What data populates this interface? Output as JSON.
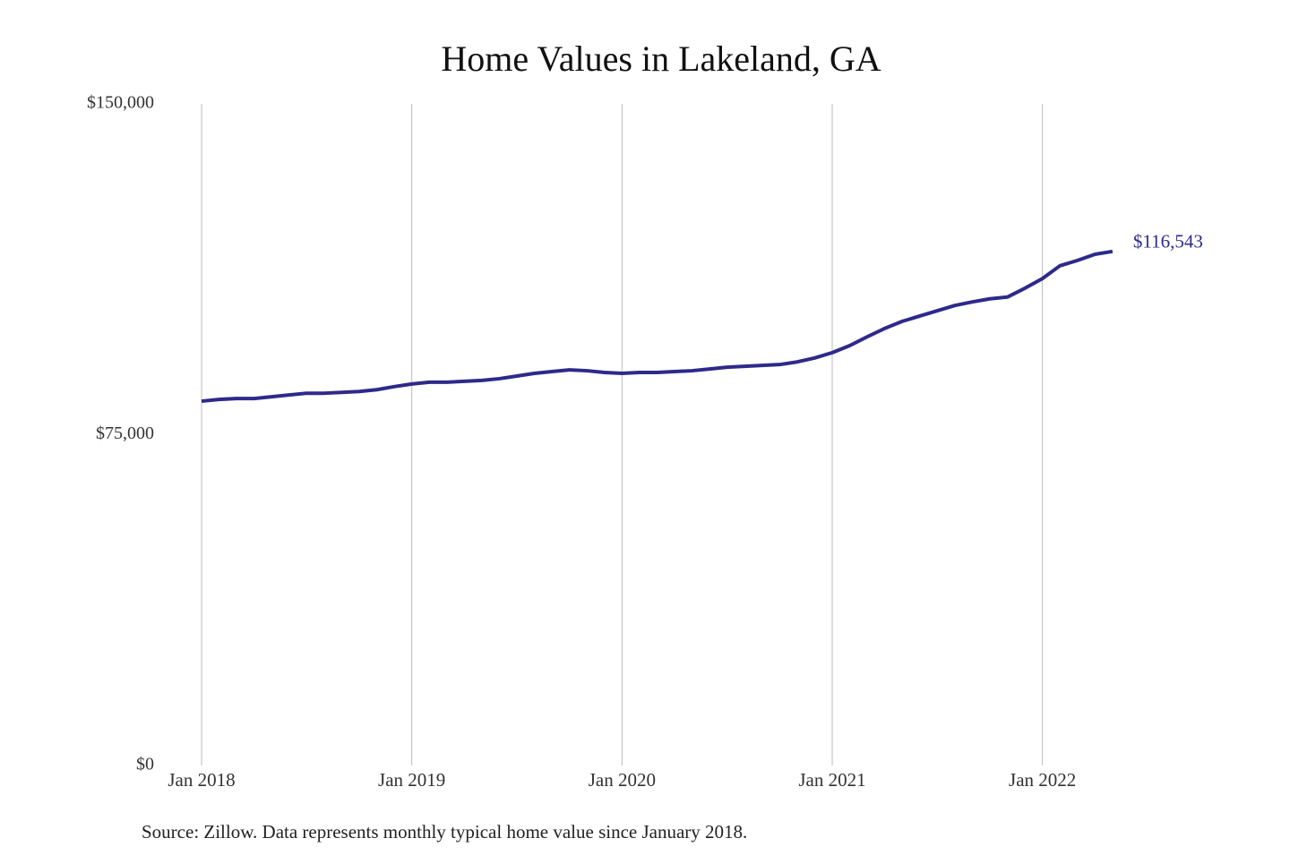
{
  "chart_data": {
    "type": "line",
    "title": "Home Values in Lakeland, GA",
    "source": "Source: Zillow. Data represents monthly typical home value since January 2018.",
    "x": [
      "2018-01",
      "2018-02",
      "2018-03",
      "2018-04",
      "2018-05",
      "2018-06",
      "2018-07",
      "2018-08",
      "2018-09",
      "2018-10",
      "2018-11",
      "2018-12",
      "2019-01",
      "2019-02",
      "2019-03",
      "2019-04",
      "2019-05",
      "2019-06",
      "2019-07",
      "2019-08",
      "2019-09",
      "2019-10",
      "2019-11",
      "2019-12",
      "2020-01",
      "2020-02",
      "2020-03",
      "2020-04",
      "2020-05",
      "2020-06",
      "2020-07",
      "2020-08",
      "2020-09",
      "2020-10",
      "2020-11",
      "2020-12",
      "2021-01",
      "2021-02",
      "2021-03",
      "2021-04",
      "2021-05",
      "2021-06",
      "2021-07",
      "2021-08",
      "2021-09",
      "2021-10",
      "2021-11",
      "2021-12",
      "2022-01",
      "2022-02",
      "2022-03",
      "2022-04",
      "2022-05"
    ],
    "values": [
      82600,
      83000,
      83200,
      83200,
      83600,
      84000,
      84400,
      84400,
      84600,
      84800,
      85200,
      85900,
      86500,
      86900,
      86900,
      87100,
      87300,
      87700,
      88300,
      88900,
      89300,
      89700,
      89500,
      89100,
      88900,
      89100,
      89100,
      89300,
      89500,
      89900,
      90300,
      90500,
      90700,
      90900,
      91500,
      92400,
      93600,
      95200,
      97200,
      99100,
      100700,
      101900,
      103100,
      104300,
      105100,
      105800,
      106200,
      108200,
      110400,
      113300,
      114500,
      115900,
      116543
    ],
    "value_labels": [
      null,
      null,
      null,
      null,
      null,
      null,
      null,
      null,
      null,
      null,
      null,
      null,
      null,
      null,
      null,
      null,
      null,
      null,
      null,
      null,
      null,
      null,
      null,
      null,
      null,
      null,
      null,
      null,
      null,
      null,
      null,
      null,
      null,
      null,
      null,
      null,
      null,
      null,
      null,
      null,
      null,
      null,
      null,
      null,
      null,
      null,
      null,
      null,
      null,
      null,
      null,
      null,
      "$116,543"
    ],
    "color": "#2e2a8a",
    "xlim": [
      "2018-01",
      "2022-07"
    ],
    "xticks": [
      {
        "value": "2018-01",
        "label": "Jan 2018"
      },
      {
        "value": "2019-01",
        "label": "Jan 2019"
      },
      {
        "value": "2020-01",
        "label": "Jan 2020"
      },
      {
        "value": "2021-01",
        "label": "Jan 2021"
      },
      {
        "value": "2022-01",
        "label": "Jan 2022"
      }
    ],
    "ylim": [
      0,
      150000
    ],
    "yticks": [
      {
        "value": 0,
        "label": "$0"
      },
      {
        "value": 75000,
        "label": "$75,000"
      },
      {
        "value": 150000,
        "label": "$150,000"
      }
    ],
    "grid": "x"
  }
}
